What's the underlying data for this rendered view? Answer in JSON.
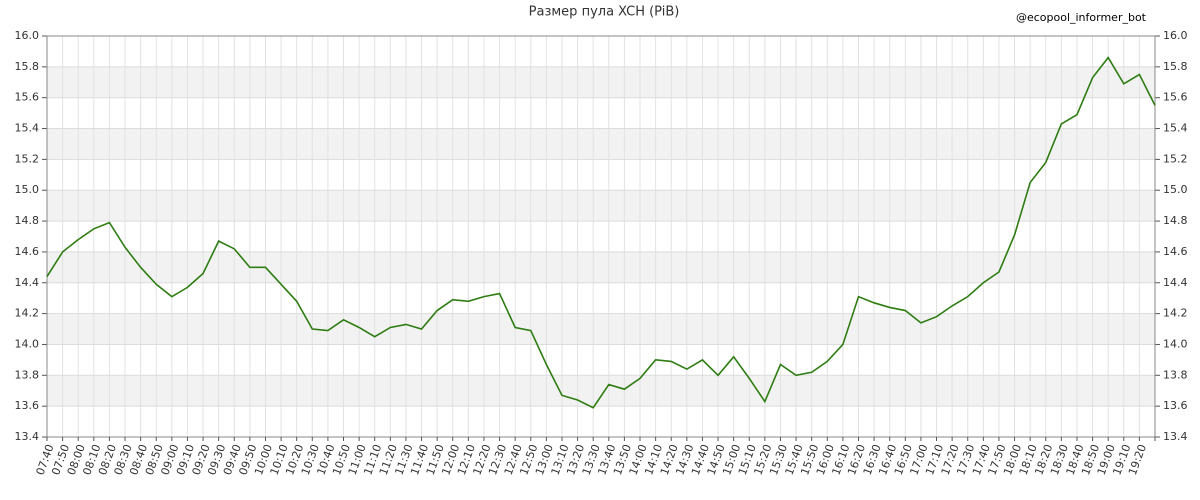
{
  "chart_data": {
    "type": "line",
    "title": "Размер пула XCH (PiB)",
    "watermark": "@ecopool_informer_bot",
    "categories": [
      "07:40",
      "07:50",
      "08:00",
      "08:10",
      "08:20",
      "08:30",
      "08:40",
      "08:50",
      "09:00",
      "09:10",
      "09:20",
      "09:30",
      "09:40",
      "09:50",
      "10:00",
      "10:10",
      "10:20",
      "10:30",
      "10:40",
      "10:50",
      "11:00",
      "11:10",
      "11:20",
      "11:30",
      "11:40",
      "11:50",
      "12:00",
      "12:10",
      "12:20",
      "12:30",
      "12:40",
      "12:50",
      "13:00",
      "13:10",
      "13:20",
      "13:30",
      "13:40",
      "13:50",
      "14:00",
      "14:10",
      "14:20",
      "14:30",
      "14:40",
      "14:50",
      "15:00",
      "15:10",
      "15:20",
      "15:30",
      "15:40",
      "15:50",
      "16:00",
      "16:10",
      "16:20",
      "16:30",
      "16:40",
      "16:50",
      "17:00",
      "17:10",
      "17:20",
      "17:30",
      "17:40",
      "17:50",
      "18:00",
      "18:10",
      "18:20",
      "18:30",
      "18:40",
      "18:50",
      "19:00",
      "19:10",
      "19:20",
      null
    ],
    "series": [
      {
        "name": "XCH",
        "color": "#2e7d12",
        "values": [
          14.44,
          14.6,
          14.68,
          14.75,
          14.79,
          14.63,
          14.5,
          14.39,
          14.31,
          14.37,
          14.46,
          14.67,
          14.62,
          14.5,
          14.5,
          14.39,
          14.28,
          14.1,
          14.09,
          14.16,
          14.11,
          14.05,
          14.11,
          14.13,
          14.1,
          14.22,
          14.29,
          14.28,
          14.31,
          14.33,
          14.11,
          14.09,
          13.87,
          13.67,
          13.64,
          13.59,
          13.74,
          13.71,
          13.78,
          13.9,
          13.89,
          13.84,
          13.9,
          13.8,
          13.92,
          13.78,
          13.63,
          13.87,
          13.8,
          13.82,
          13.89,
          14.0,
          14.31,
          14.27,
          14.24,
          14.22,
          14.14,
          14.18,
          14.25,
          14.31,
          14.4,
          14.47,
          14.71,
          15.05,
          15.18,
          15.43,
          15.49,
          15.73,
          15.86,
          15.69,
          15.75,
          15.55
        ]
      }
    ],
    "ylim": [
      13.4,
      16.0
    ],
    "yticks": [
      {
        "value": 13.4,
        "label": "13.4"
      },
      {
        "value": 13.6,
        "label": "13.6"
      },
      {
        "value": 13.8,
        "label": "13.8"
      },
      {
        "value": 14.0,
        "label": "14.0"
      },
      {
        "value": 14.2,
        "label": "14.2"
      },
      {
        "value": 14.4,
        "label": "14.4"
      },
      {
        "value": 14.6,
        "label": "14.6"
      },
      {
        "value": 14.8,
        "label": "14.8"
      },
      {
        "value": 15.0,
        "label": "15.0"
      },
      {
        "value": 15.2,
        "label": "15.2"
      },
      {
        "value": 15.4,
        "label": "15.4"
      },
      {
        "value": 15.6,
        "label": "15.6"
      },
      {
        "value": 15.8,
        "label": "15.8"
      },
      {
        "value": 16.0,
        "label": "16.0"
      }
    ],
    "grid": true
  }
}
